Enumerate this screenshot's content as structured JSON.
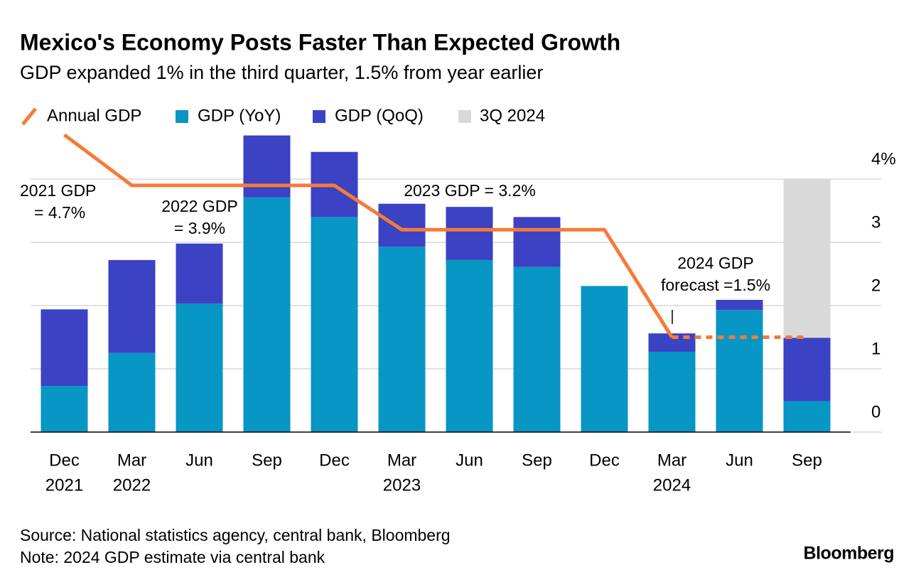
{
  "chart_data": {
    "type": "bar",
    "title": "Mexico's Economy Posts Faster Than Expected Growth",
    "subtitle": "GDP expanded 1% in the third quarter, 1.5% from year earlier",
    "categories": [
      "Dec",
      "Mar",
      "Jun",
      "Sep",
      "Dec",
      "Mar",
      "Jun",
      "Sep",
      "Dec",
      "Mar",
      "Jun",
      "Sep"
    ],
    "years": [
      "2021",
      "2022",
      null,
      null,
      null,
      "2023",
      null,
      null,
      null,
      "2024",
      null,
      null
    ],
    "stacked": true,
    "series": [
      {
        "name": "GDP (YoY)",
        "color": "#0896c4",
        "values": [
          0.73,
          1.25,
          2.03,
          3.71,
          3.4,
          2.93,
          2.72,
          2.61,
          2.31,
          1.27,
          1.93,
          0.49
        ]
      },
      {
        "name": "GDP (QoQ)",
        "color": "#3b42c4",
        "values": [
          1.21,
          1.47,
          0.95,
          0.98,
          1.03,
          0.68,
          0.84,
          0.79,
          0,
          0.29,
          0.16,
          1.0
        ]
      }
    ],
    "line_series": {
      "name": "Annual GDP",
      "color": "#f47b3a",
      "dashed_from": 9,
      "values": [
        4.7,
        3.9,
        3.9,
        3.9,
        3.9,
        3.2,
        3.2,
        3.2,
        3.2,
        1.5,
        1.5,
        1.5
      ]
    },
    "highlight": {
      "name": "3Q 2024",
      "color": "#d9d9d9",
      "index": 11,
      "range": [
        0,
        4
      ]
    },
    "ylim": [
      0,
      4.8
    ],
    "yticks": [
      0,
      1,
      2,
      3,
      {
        "value": 4,
        "label": "4%"
      }
    ],
    "grid": true,
    "annotations": [
      {
        "lines": [
          "2021 GDP",
          "= 4.7%"
        ]
      },
      {
        "lines": [
          "2022 GDP",
          "= 3.9%"
        ]
      },
      {
        "lines": [
          "2023 GDP = 3.2%"
        ]
      },
      {
        "lines": [
          "2024 GDP",
          "forecast =1.5%"
        ]
      }
    ],
    "source": "Source: National statistics agency, central bank, Bloomberg",
    "note": "Note: 2024 GDP estimate via central bank",
    "brand": "Bloomberg"
  }
}
